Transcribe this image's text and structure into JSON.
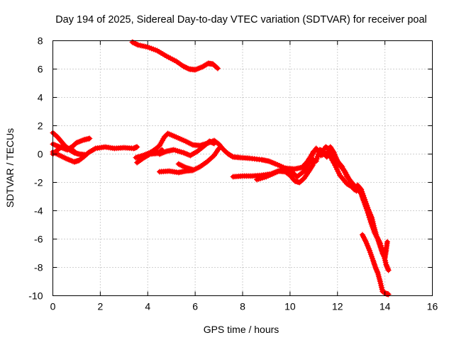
{
  "chart_data": {
    "type": "scatter",
    "title": "Day 194 of 2025, Sidereal Day-to-day VTEC variation (SDTVAR) for receiver poal",
    "xlabel": "GPS time / hours",
    "ylabel": "SDTVAR / TECUs",
    "xlim": [
      0,
      16
    ],
    "ylim": [
      -10,
      8
    ],
    "xticks": [
      "0",
      "2",
      "4",
      "6",
      "8",
      "10",
      "12",
      "14",
      "16"
    ],
    "yticks": [
      "-10",
      "-8",
      "-6",
      "-4",
      "-2",
      "0",
      "2",
      "4",
      "6",
      "8"
    ],
    "grid": true,
    "marker": "+",
    "series_color": "#ff0000",
    "series": [
      {
        "name": "arc-1",
        "points": [
          [
            3.35,
            7.9
          ],
          [
            3.6,
            7.7
          ],
          [
            4.0,
            7.55
          ],
          [
            4.4,
            7.3
          ],
          [
            4.8,
            6.9
          ],
          [
            5.2,
            6.55
          ],
          [
            5.5,
            6.2
          ],
          [
            5.75,
            6.0
          ],
          [
            6.0,
            5.95
          ],
          [
            6.3,
            6.15
          ],
          [
            6.55,
            6.4
          ],
          [
            6.75,
            6.35
          ],
          [
            6.95,
            6.05
          ]
        ]
      },
      {
        "name": "arc-2",
        "points": [
          [
            0.0,
            1.5
          ],
          [
            0.2,
            1.2
          ],
          [
            0.35,
            0.9
          ],
          [
            0.5,
            0.6
          ],
          [
            0.7,
            0.3
          ],
          [
            0.9,
            0.1
          ],
          [
            1.1,
            0.0
          ],
          [
            1.35,
            -0.05
          ]
        ]
      },
      {
        "name": "arc-3",
        "points": [
          [
            0.0,
            0.15
          ],
          [
            0.3,
            -0.1
          ],
          [
            0.6,
            -0.35
          ],
          [
            0.9,
            -0.55
          ],
          [
            1.1,
            -0.45
          ],
          [
            1.3,
            -0.2
          ],
          [
            1.5,
            0.1
          ],
          [
            1.8,
            0.4
          ],
          [
            2.2,
            0.5
          ],
          [
            2.6,
            0.4
          ],
          [
            3.0,
            0.45
          ],
          [
            3.4,
            0.4
          ],
          [
            3.55,
            0.5
          ]
        ]
      },
      {
        "name": "arc-4",
        "points": [
          [
            0.0,
            0.7
          ],
          [
            0.3,
            0.5
          ],
          [
            0.6,
            0.3
          ],
          [
            0.8,
            0.5
          ],
          [
            1.0,
            0.8
          ],
          [
            1.3,
            1.0
          ],
          [
            1.55,
            1.1
          ]
        ]
      },
      {
        "name": "arc-5",
        "points": [
          [
            0.0,
            0.0
          ],
          [
            0.2,
            0.3
          ],
          [
            0.45,
            0.6
          ],
          [
            0.7,
            0.35
          ],
          [
            0.9,
            0.2
          ]
        ]
      },
      {
        "name": "arc-6",
        "points": [
          [
            3.55,
            -0.6
          ],
          [
            3.8,
            -0.3
          ],
          [
            4.1,
            0.0
          ],
          [
            4.4,
            0.05
          ],
          [
            4.6,
            0.3
          ]
        ]
      },
      {
        "name": "arc-7",
        "points": [
          [
            3.5,
            -0.25
          ],
          [
            3.8,
            -0.1
          ],
          [
            4.1,
            0.1
          ],
          [
            4.3,
            0.3
          ],
          [
            4.5,
            0.0
          ]
        ]
      },
      {
        "name": "arc-8",
        "points": [
          [
            4.25,
            0.25
          ],
          [
            4.5,
            0.6
          ],
          [
            4.7,
            1.2
          ],
          [
            4.85,
            1.45
          ],
          [
            5.2,
            1.2
          ],
          [
            5.6,
            0.9
          ],
          [
            5.9,
            0.65
          ],
          [
            6.2,
            0.6
          ],
          [
            6.5,
            0.75
          ],
          [
            6.8,
            0.95
          ],
          [
            7.0,
            0.7
          ],
          [
            7.2,
            0.3
          ],
          [
            7.4,
            0.0
          ],
          [
            7.6,
            -0.2
          ],
          [
            7.9,
            -0.25
          ],
          [
            8.3,
            -0.3
          ],
          [
            8.8,
            -0.4
          ],
          [
            9.1,
            -0.5
          ],
          [
            9.4,
            -0.7
          ],
          [
            9.8,
            -1.0
          ],
          [
            10.2,
            -1.05
          ],
          [
            10.5,
            -0.95
          ],
          [
            10.7,
            -0.6
          ],
          [
            10.9,
            -0.1
          ],
          [
            11.0,
            0.15
          ]
        ]
      },
      {
        "name": "arc-9",
        "points": [
          [
            4.5,
            0.0
          ],
          [
            4.8,
            0.2
          ],
          [
            5.1,
            0.3
          ],
          [
            5.5,
            0.1
          ],
          [
            5.8,
            -0.1
          ],
          [
            6.1,
            0.2
          ],
          [
            6.4,
            0.6
          ],
          [
            6.6,
            0.9
          ],
          [
            6.8,
            0.75
          ]
        ]
      },
      {
        "name": "arc-10",
        "points": [
          [
            4.5,
            -1.25
          ],
          [
            4.9,
            -1.2
          ],
          [
            5.3,
            -1.3
          ],
          [
            5.6,
            -1.2
          ],
          [
            5.9,
            -1.15
          ],
          [
            6.2,
            -0.9
          ],
          [
            6.5,
            -0.55
          ],
          [
            6.8,
            -0.1
          ],
          [
            7.0,
            0.4
          ]
        ]
      },
      {
        "name": "arc-11",
        "points": [
          [
            5.3,
            -0.7
          ],
          [
            5.6,
            -0.95
          ],
          [
            5.9,
            -1.1
          ]
        ]
      },
      {
        "name": "arc-12",
        "points": [
          [
            7.6,
            -1.6
          ],
          [
            8.0,
            -1.55
          ],
          [
            8.4,
            -1.55
          ],
          [
            8.8,
            -1.5
          ],
          [
            9.2,
            -1.4
          ],
          [
            9.5,
            -1.2
          ],
          [
            9.8,
            -1.25
          ],
          [
            10.0,
            -1.5
          ],
          [
            10.2,
            -1.9
          ],
          [
            10.4,
            -2.0
          ],
          [
            10.6,
            -1.7
          ],
          [
            10.8,
            -1.2
          ],
          [
            10.95,
            -0.8
          ],
          [
            11.0,
            -0.4
          ]
        ]
      },
      {
        "name": "arc-13",
        "points": [
          [
            8.6,
            -1.8
          ],
          [
            9.0,
            -1.6
          ],
          [
            9.4,
            -1.3
          ],
          [
            9.8,
            -1.0
          ],
          [
            10.0,
            -1.15
          ],
          [
            10.3,
            -1.6
          ],
          [
            10.6,
            -1.2
          ],
          [
            10.8,
            -0.6
          ],
          [
            10.95,
            0.0
          ],
          [
            11.0,
            0.2
          ]
        ]
      },
      {
        "name": "arc-14",
        "points": [
          [
            11.1,
            -0.5
          ],
          [
            11.25,
            0.3
          ],
          [
            11.4,
            0.2
          ],
          [
            11.55,
            -0.2
          ],
          [
            11.7,
            0.5
          ],
          [
            11.85,
            0.1
          ],
          [
            12.0,
            -0.5
          ],
          [
            12.2,
            -0.9
          ],
          [
            12.4,
            -1.6
          ],
          [
            12.6,
            -2.0
          ],
          [
            12.8,
            -2.4
          ],
          [
            13.0,
            -2.8
          ],
          [
            13.1,
            -3.3
          ],
          [
            13.25,
            -4.0
          ],
          [
            13.4,
            -4.8
          ],
          [
            13.55,
            -5.5
          ],
          [
            13.7,
            -6.0
          ],
          [
            13.8,
            -6.5
          ],
          [
            13.9,
            -7.0
          ],
          [
            14.0,
            -7.3
          ],
          [
            14.05,
            -6.8
          ],
          [
            14.1,
            -6.2
          ]
        ]
      },
      {
        "name": "arc-15",
        "points": [
          [
            11.1,
            0.4
          ],
          [
            11.3,
            0.0
          ],
          [
            11.5,
            0.5
          ],
          [
            11.7,
            0.3
          ],
          [
            11.9,
            -0.2
          ],
          [
            12.1,
            -0.8
          ],
          [
            12.3,
            -1.2
          ],
          [
            12.5,
            -1.8
          ],
          [
            12.7,
            -2.5
          ],
          [
            12.85,
            -2.2
          ],
          [
            13.0,
            -2.5
          ],
          [
            13.15,
            -3.2
          ],
          [
            13.3,
            -3.9
          ],
          [
            13.45,
            -4.5
          ],
          [
            13.55,
            -5.2
          ],
          [
            13.65,
            -5.8
          ],
          [
            13.8,
            -6.3
          ],
          [
            13.95,
            -7.1
          ],
          [
            14.05,
            -7.8
          ],
          [
            14.15,
            -8.2
          ]
        ]
      },
      {
        "name": "arc-16",
        "points": [
          [
            11.3,
            -0.1
          ],
          [
            11.6,
            0.1
          ],
          [
            11.9,
            -0.8
          ],
          [
            12.1,
            -1.5
          ],
          [
            12.4,
            -2.1
          ],
          [
            12.6,
            -2.3
          ],
          [
            12.8,
            -2.6
          ]
        ]
      },
      {
        "name": "arc-17",
        "points": [
          [
            13.05,
            -5.7
          ],
          [
            13.2,
            -6.2
          ],
          [
            13.35,
            -6.8
          ],
          [
            13.5,
            -7.5
          ],
          [
            13.6,
            -8.0
          ],
          [
            13.7,
            -8.4
          ],
          [
            13.8,
            -9.0
          ],
          [
            13.9,
            -9.7
          ],
          [
            14.05,
            -9.85
          ],
          [
            14.15,
            -9.9
          ]
        ]
      }
    ]
  }
}
